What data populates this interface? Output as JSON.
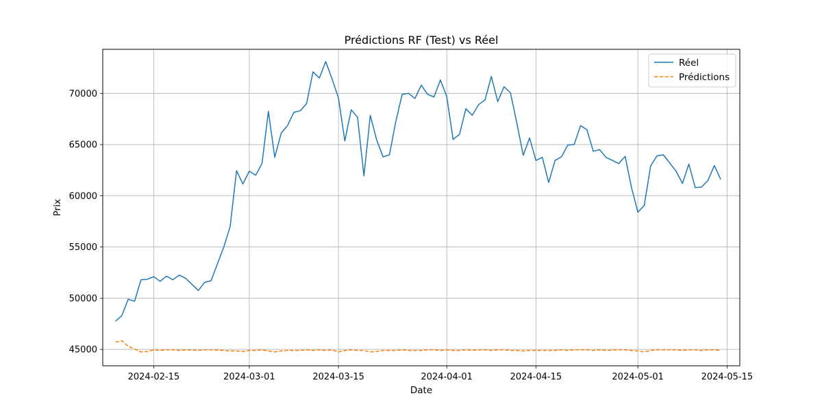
{
  "chart_data": {
    "type": "line",
    "title": "Prédictions RF (Test) vs Réel",
    "xlabel": "Date",
    "ylabel": "Prix",
    "xlim": [
      "2024-02-07",
      "2024-05-17"
    ],
    "ylim": [
      43400,
      74300
    ],
    "grid": true,
    "legend_position": "top-right",
    "x_ticks": [
      "2024-02-15",
      "2024-03-01",
      "2024-03-15",
      "2024-04-01",
      "2024-04-15",
      "2024-05-01",
      "2024-05-15"
    ],
    "y_ticks": [
      45000,
      50000,
      55000,
      60000,
      65000,
      70000
    ],
    "x": [
      "2024-02-09",
      "2024-02-10",
      "2024-02-11",
      "2024-02-12",
      "2024-02-13",
      "2024-02-14",
      "2024-02-15",
      "2024-02-16",
      "2024-02-17",
      "2024-02-18",
      "2024-02-19",
      "2024-02-20",
      "2024-02-22",
      "2024-02-23",
      "2024-02-24",
      "2024-02-26",
      "2024-02-27",
      "2024-02-28",
      "2024-02-29",
      "2024-03-01",
      "2024-03-02",
      "2024-03-03",
      "2024-03-04",
      "2024-03-05",
      "2024-03-06",
      "2024-03-07",
      "2024-03-08",
      "2024-03-09",
      "2024-03-10",
      "2024-03-11",
      "2024-03-12",
      "2024-03-13",
      "2024-03-14",
      "2024-03-15",
      "2024-03-16",
      "2024-03-17",
      "2024-03-18",
      "2024-03-19",
      "2024-03-20",
      "2024-03-21",
      "2024-03-22",
      "2024-03-23",
      "2024-03-24",
      "2024-03-25",
      "2024-03-26",
      "2024-03-27",
      "2024-03-28",
      "2024-03-29",
      "2024-03-30",
      "2024-03-31",
      "2024-04-01",
      "2024-04-02",
      "2024-04-03",
      "2024-04-04",
      "2024-04-05",
      "2024-04-06",
      "2024-04-07",
      "2024-04-08",
      "2024-04-09",
      "2024-04-10",
      "2024-04-11",
      "2024-04-12",
      "2024-04-13",
      "2024-04-14",
      "2024-04-15",
      "2024-04-16",
      "2024-04-17",
      "2024-04-18",
      "2024-04-19",
      "2024-04-20",
      "2024-04-21",
      "2024-04-22",
      "2024-04-23",
      "2024-04-24",
      "2024-04-25",
      "2024-04-26",
      "2024-04-28",
      "2024-04-29",
      "2024-04-30",
      "2024-05-01",
      "2024-05-02",
      "2024-05-03",
      "2024-05-04",
      "2024-05-05",
      "2024-05-07",
      "2024-05-08",
      "2024-05-09",
      "2024-05-10",
      "2024-05-11",
      "2024-05-12",
      "2024-05-13",
      "2024-05-14"
    ],
    "series": [
      {
        "name": "Réel",
        "color": "#1f77b4",
        "style": "solid",
        "values": [
          47750,
          48300,
          49900,
          49700,
          51800,
          51850,
          52100,
          51650,
          52150,
          51800,
          52250,
          51950,
          50750,
          51550,
          51700,
          55000,
          57000,
          62450,
          61150,
          62400,
          62000,
          63150,
          68250,
          63750,
          66100,
          66850,
          68150,
          68300,
          69000,
          72100,
          71500,
          73100,
          71400,
          69550,
          65350,
          68400,
          67650,
          61950,
          67850,
          65450,
          63800,
          64000,
          67250,
          69900,
          70000,
          69500,
          70800,
          69900,
          69650,
          71300,
          69700,
          65500,
          66000,
          68500,
          67850,
          68900,
          69350,
          71650,
          69200,
          70650,
          70050,
          67100,
          63950,
          65650,
          63450,
          63750,
          61300,
          63450,
          63800,
          64950,
          65000,
          66850,
          66450,
          64350,
          64500,
          63750,
          63150,
          63850,
          60800,
          58400,
          59050,
          62900,
          63900,
          64000,
          62400,
          61200,
          63100,
          60800,
          60850,
          61500,
          62950,
          61600
        ]
      },
      {
        "name": "Prédictions",
        "color": "#ff7f0e",
        "style": "dashed",
        "values": [
          45700,
          45850,
          45300,
          45050,
          44750,
          44800,
          44950,
          44900,
          44950,
          44950,
          44900,
          44950,
          44900,
          44950,
          44950,
          44900,
          44850,
          44850,
          44800,
          44900,
          44900,
          44950,
          44850,
          44750,
          44850,
          44900,
          44900,
          44900,
          44950,
          44900,
          44950,
          44900,
          44950,
          44750,
          44900,
          44950,
          44900,
          44900,
          44750,
          44800,
          44900,
          44900,
          44900,
          44950,
          44900,
          44900,
          44900,
          44950,
          44950,
          44900,
          44950,
          44900,
          44900,
          44950,
          44900,
          44950,
          44950,
          44900,
          44950,
          44950,
          44900,
          44900,
          44850,
          44900,
          44900,
          44900,
          44900,
          44900,
          44950,
          44900,
          44950,
          44950,
          44950,
          44900,
          44950,
          44900,
          44950,
          44950,
          44900,
          44850,
          44750,
          44900,
          44950,
          44950,
          44950,
          44900,
          44950,
          44950,
          44900,
          44950,
          44950,
          44900
        ]
      }
    ]
  }
}
